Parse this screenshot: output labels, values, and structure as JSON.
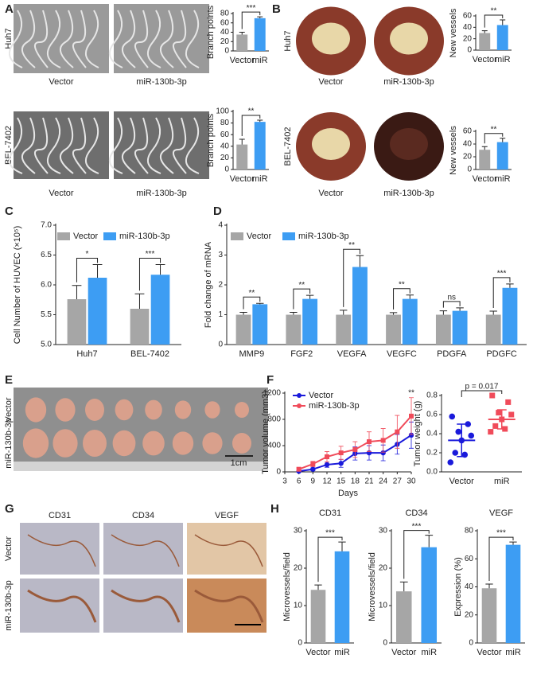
{
  "panels": [
    "A",
    "B",
    "C",
    "D",
    "E",
    "F",
    "G",
    "H"
  ],
  "image_labels": {
    "A": {
      "rows": [
        "Huh7",
        "BEL-7402"
      ],
      "cols": [
        "Vector",
        "miR-130b-3p"
      ]
    },
    "B": {
      "rows": [
        "Huh7",
        "BEL-7402"
      ],
      "cols": [
        "Vector",
        "miR-130b-3p"
      ]
    },
    "E": {
      "rows": [
        "Vector",
        "miR-130b-3p"
      ],
      "scale": "1cm"
    },
    "G": {
      "rows": [
        "Vector",
        "miR-130b-3p"
      ],
      "cols": [
        "CD31",
        "CD34",
        "VEGF"
      ]
    }
  },
  "chart_data": [
    {
      "type": "bar",
      "ylabel": "Branch points",
      "categories": [
        "Vector",
        "miR"
      ],
      "values": [
        35,
        70
      ],
      "errors": [
        5,
        3
      ],
      "colors": [
        "#a6a6a6",
        "#3d9df3"
      ],
      "ylim": [
        0,
        80
      ],
      "yticks": [
        0,
        20,
        40,
        60,
        80
      ],
      "annotation": "***"
    },
    {
      "type": "bar",
      "ylabel": "Branch points",
      "categories": [
        "Vector",
        "miR"
      ],
      "values": [
        43,
        82
      ],
      "errors": [
        9,
        3
      ],
      "colors": [
        "#a6a6a6",
        "#3d9df3"
      ],
      "ylim": [
        0,
        100
      ],
      "yticks": [
        0,
        20,
        40,
        60,
        80,
        100
      ],
      "annotation": "**"
    },
    {
      "type": "bar",
      "ylabel": "New vessels",
      "categories": [
        "Vector",
        "miR"
      ],
      "values": [
        30,
        44
      ],
      "errors": [
        4,
        9
      ],
      "colors": [
        "#a6a6a6",
        "#3d9df3"
      ],
      "ylim": [
        0,
        60
      ],
      "yticks": [
        0,
        20,
        40,
        60
      ],
      "annotation": "**"
    },
    {
      "type": "bar",
      "ylabel": "New vessels",
      "categories": [
        "Vector",
        "miR"
      ],
      "values": [
        31,
        43
      ],
      "errors": [
        5,
        6
      ],
      "colors": [
        "#a6a6a6",
        "#3d9df3"
      ],
      "ylim": [
        0,
        60
      ],
      "yticks": [
        0,
        20,
        40,
        60
      ],
      "annotation": "**"
    },
    {
      "type": "bar",
      "ylabel": "Cell Number of HUVEC (×10⁵)",
      "categories": [
        "Huh7",
        "BEL-7402"
      ],
      "series": [
        {
          "name": "Vector",
          "color": "#a6a6a6",
          "values": [
            5.76,
            5.6
          ],
          "errors": [
            0.23,
            0.25
          ]
        },
        {
          "name": "miR-130b-3p",
          "color": "#3d9df3",
          "values": [
            6.12,
            6.17
          ],
          "errors": [
            0.22,
            0.17
          ]
        }
      ],
      "ylim": [
        5,
        7
      ],
      "yticks": [
        {
          "value": 5,
          "label": "5.0"
        },
        {
          "value": 5.5,
          "label": "5.5"
        },
        {
          "value": 6,
          "label": "6.0"
        },
        {
          "value": 6.5,
          "label": "6.5"
        },
        {
          "value": 7,
          "label": "7.0"
        }
      ],
      "annotations": [
        "*",
        "***"
      ]
    },
    {
      "type": "bar",
      "ylabel": "Fold change of mRNA",
      "categories": [
        "MMP9",
        "FGF2",
        "VEGFA",
        "VEGFC",
        "PDGFA",
        "PDGFC"
      ],
      "series": [
        {
          "name": "Vector",
          "color": "#a6a6a6",
          "values": [
            1,
            1,
            1,
            1,
            1,
            1
          ],
          "errors": [
            0.08,
            0.08,
            0.15,
            0.07,
            0.13,
            0.12
          ]
        },
        {
          "name": "miR-130b-3p",
          "color": "#3d9df3",
          "values": [
            1.35,
            1.53,
            2.6,
            1.53,
            1.13,
            1.9
          ],
          "errors": [
            0.03,
            0.12,
            0.38,
            0.13,
            0.1,
            0.13
          ]
        }
      ],
      "ylim": [
        0,
        4
      ],
      "yticks": [
        0,
        1,
        2,
        3,
        4
      ],
      "annotations": [
        "**",
        "**",
        "**",
        "**",
        "ns",
        "***"
      ]
    },
    {
      "type": "line",
      "ylabel": "Tumor volume (mm3)",
      "xlabel": "Days",
      "x": [
        6,
        9,
        12,
        15,
        18,
        21,
        24,
        27,
        30
      ],
      "series": [
        {
          "name": "Vector",
          "color": "#1a1adb",
          "values": [
            10,
            40,
            110,
            130,
            280,
            290,
            290,
            420,
            560
          ],
          "errors": [
            10,
            20,
            40,
            60,
            100,
            110,
            120,
            150,
            200
          ]
        },
        {
          "name": "miR-130b-3p",
          "color": "#f04b5a",
          "values": [
            40,
            120,
            230,
            290,
            340,
            460,
            480,
            610,
            850
          ],
          "errors": [
            20,
            40,
            80,
            100,
            120,
            150,
            180,
            250,
            280
          ]
        }
      ],
      "xlim": [
        3,
        30
      ],
      "xticks": [
        3,
        6,
        9,
        12,
        15,
        18,
        21,
        24,
        27,
        30
      ],
      "ylim": [
        0,
        1200
      ],
      "yticks": [
        0,
        400,
        800,
        1200
      ],
      "annotation": "**"
    },
    {
      "type": "scatter",
      "ylabel": "Tumor weight (g)",
      "categories": [
        "Vector",
        "miR"
      ],
      "colors": [
        "#1a1adb",
        "#f04b5a"
      ],
      "values": [
        [
          0.58,
          0.5,
          0.42,
          0.38,
          0.33,
          0.2,
          0.18,
          0.1
        ],
        [
          0.8,
          0.73,
          0.62,
          0.6,
          0.55,
          0.48,
          0.45,
          0.42
        ]
      ],
      "means": [
        0.33,
        0.55
      ],
      "errors": [
        0.17,
        0.1
      ],
      "ylim": [
        0,
        0.8
      ],
      "yticks": [
        {
          "value": 0,
          "label": "0.0"
        },
        {
          "value": 0.2,
          "label": "0.2"
        },
        {
          "value": 0.4,
          "label": "0.4"
        },
        {
          "value": 0.6,
          "label": "0.6"
        },
        {
          "value": 0.8,
          "label": "0.8"
        }
      ],
      "annotation": "p = 0.017"
    },
    {
      "type": "bar",
      "title": "CD31",
      "ylabel": "Microvessels/field",
      "categories": [
        "Vector",
        "miR"
      ],
      "values": [
        14.2,
        24.5
      ],
      "errors": [
        1.3,
        2.5
      ],
      "colors": [
        "#a6a6a6",
        "#3d9df3"
      ],
      "ylim": [
        0,
        30
      ],
      "yticks": [
        0,
        10,
        20,
        30
      ],
      "annotation": "***"
    },
    {
      "type": "bar",
      "title": "CD34",
      "ylabel": "Microvessels/field",
      "categories": [
        "Vector",
        "miR"
      ],
      "values": [
        13.8,
        25.6
      ],
      "errors": [
        2.5,
        3.2
      ],
      "colors": [
        "#a6a6a6",
        "#3d9df3"
      ],
      "ylim": [
        0,
        30
      ],
      "yticks": [
        0,
        10,
        20,
        30
      ],
      "annotation": "***"
    },
    {
      "type": "bar",
      "title": "VEGF",
      "ylabel": "Expression (%)",
      "categories": [
        "Vector",
        "miR"
      ],
      "values": [
        39,
        70
      ],
      "errors": [
        3,
        2
      ],
      "colors": [
        "#a6a6a6",
        "#3d9df3"
      ],
      "ylim": [
        0,
        80
      ],
      "yticks": [
        0,
        20,
        40,
        60,
        80
      ],
      "annotation": "***"
    }
  ]
}
